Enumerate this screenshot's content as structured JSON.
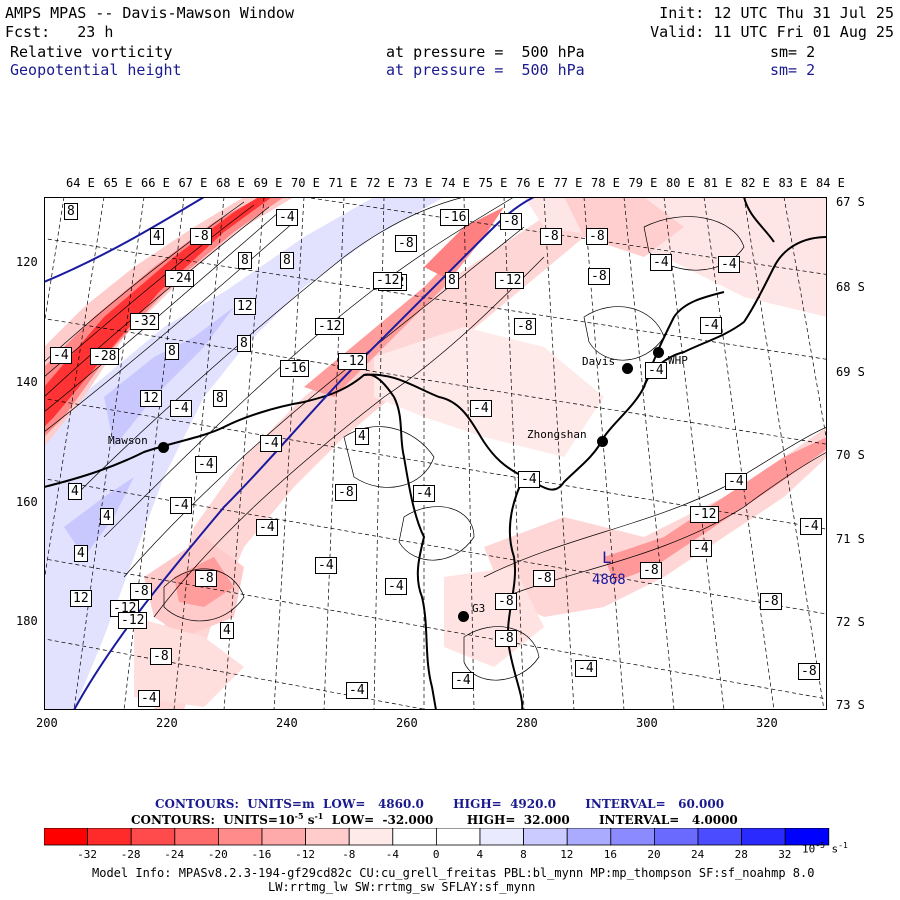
{
  "header": {
    "title": "AMPS MPAS -- Davis-Mawson Window",
    "init": "Init: 12 UTC Thu 31 Jul 25",
    "forecast": "Fcst:   23 h",
    "valid": "Valid: 11 UTC Fri 01 Aug 25",
    "field1": {
      "name": "Relative vorticity",
      "level": "at pressure =  500 hPa",
      "sm": "sm= 2"
    },
    "field2": {
      "name": "Geopotential height",
      "level": "at pressure =  500 hPa",
      "sm": "sm= 2"
    }
  },
  "map": {
    "top_lon_labels": [
      "64 E",
      "65 E",
      "66 E",
      "67 E",
      "68 E",
      "69 E",
      "70 E",
      "71 E",
      "72 E",
      "73 E",
      "74 E",
      "75 E",
      "76 E",
      "77 E",
      "78 E",
      "79 E",
      "80 E",
      "81 E",
      "82 E",
      "83 E",
      "84 E"
    ],
    "right_lat_labels": [
      "67 S",
      "68 S",
      "69 S",
      "70 S",
      "71 S",
      "72 S",
      "73 S"
    ],
    "left_grid_labels": [
      "120",
      "140",
      "160",
      "180"
    ],
    "bottom_grid_labels": [
      "200",
      "220",
      "240",
      "260",
      "280",
      "300",
      "320"
    ],
    "stations": [
      {
        "name": "Mawson"
      },
      {
        "name": "Davis"
      },
      {
        "name": "WHP"
      },
      {
        "name": "Zhongshan"
      },
      {
        "name": "G3"
      }
    ],
    "low_marker": {
      "label": "L",
      "value": "4868"
    },
    "contour_labels": [
      "8",
      "4",
      "-8",
      "-4",
      "-16",
      "-8",
      "-8",
      "-8",
      "-8",
      "-24",
      "8",
      "8",
      "8",
      "-12",
      "-12",
      "-8",
      "-4",
      "-32",
      "12",
      "-12",
      "-8",
      "-28",
      "8",
      "8",
      "-16",
      "-12",
      "-4",
      "-4",
      "12",
      "8",
      "-4",
      "-4",
      "-4",
      "-4",
      "-8",
      "-4",
      "-4",
      "4",
      "-4",
      "-4",
      "-8",
      "-12",
      "-4",
      "-4",
      "-8",
      "4",
      "-4",
      "-4",
      "-8",
      "-12",
      "-4",
      "-4",
      "4",
      "-8",
      "-8",
      "-12",
      "-4",
      "-8",
      "4",
      "12",
      "-12",
      "4",
      "-8",
      "-4",
      "-4",
      "-8",
      "-4",
      "-8",
      "-4"
    ],
    "colors": {
      "geopotential_contour": "#1a1aa0",
      "coast": "#000000"
    }
  },
  "contour_info": {
    "line1": "CONTOURS:  UNITS=m  LOW=   4860.0       HIGH=  4920.0       INTERVAL=   60.000",
    "line2": "CONTOURS:  UNITS=10",
    "line2_exp": "-5",
    "line2_rest": " s",
    "line2_exp2": "-1",
    "line2_tail": "  LOW=  -32.000        HIGH=  32.000       INTERVAL=   4.0000"
  },
  "colorbar": {
    "ticks": [
      "-32",
      "-28",
      "-24",
      "-20",
      "-16",
      "-12",
      "-8",
      "-4",
      "0",
      "4",
      "8",
      "12",
      "16",
      "20",
      "24",
      "28",
      "32"
    ],
    "unit": "10",
    "unit_exp": "-5",
    "unit_tail": " s",
    "unit_tail_exp": "-1",
    "colors": [
      "#ff0000",
      "#ff2a2a",
      "#ff4b4b",
      "#ff6a6a",
      "#ff8b8b",
      "#ffaaaa",
      "#ffcbcb",
      "#ffeaea",
      "#ffffff",
      "#ffffff",
      "#eaeaff",
      "#cbcbff",
      "#aaaaff",
      "#8b8bff",
      "#6a6aff",
      "#4b4bff",
      "#2a2aff",
      "#0000ff"
    ]
  },
  "footer": {
    "line1": "Model Info: MPASv8.2.3-194-gf29cd82c CU:cu_grell_freitas PBL:bl_mynn MP:mp_thompson SF:sf_noahmp 8.0",
    "line2": "LW:rrtmg_lw SW:rrtmg_sw SFLAY:sf_mynn"
  }
}
